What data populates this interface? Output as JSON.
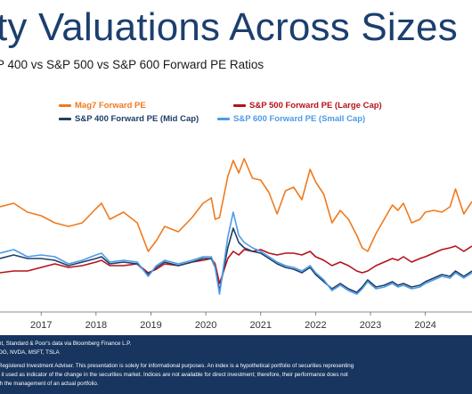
{
  "header": {
    "title": "ity Valuations Across Sizes",
    "subtitle": "P 400 vs S&P 500 vs S&P 600 Forward PE Ratios"
  },
  "legend": [
    {
      "label": "Mag7 Forward PE",
      "color": "#f07a1e"
    },
    {
      "label": "S&P 500 Forward PE (Large Cap)",
      "color": "#b5121b"
    },
    {
      "label": "S&P 400 Forward PE (Mid Cap)",
      "color": "#1f3f66"
    },
    {
      "label": "S&P 600 Forward PE (Small Cap)",
      "color": "#4c9be8"
    }
  ],
  "footer": {
    "line1": "nt, Standard & Poor's data via Bloomberg Finance L.P.",
    "line2": "OG, NVDA, MSFT, TSLA",
    "line3": "Registered Investment Adviser. This presentation is solely for informational purposes. An index is a hypothetical portfolio of securities representing",
    "line4": "f it used as indicator of the change in the securities market. Indices are not available for direct investment; therefore, their performance does not",
    "line5": "th the management of an actual portfolio."
  },
  "chart_data": {
    "type": "line",
    "title": "",
    "xlabel": "",
    "ylabel": "",
    "x_ticks": [
      "2017",
      "2018",
      "2019",
      "2020",
      "2021",
      "2022",
      "2023",
      "2024"
    ],
    "xlim": [
      2016.25,
      2024.85
    ],
    "ylim": [
      0,
      10
    ],
    "y_axis_labels_visible": false,
    "grid": false,
    "legend_position": "top",
    "series": [
      {
        "name": "Mag7 Forward PE",
        "color": "#f07a1e",
        "x": [
          2016.25,
          2016.5,
          2016.75,
          2017.0,
          2017.25,
          2017.5,
          2017.75,
          2018.0,
          2018.1,
          2018.25,
          2018.5,
          2018.75,
          2018.95,
          2019.1,
          2019.25,
          2019.5,
          2019.75,
          2019.95,
          2020.1,
          2020.17,
          2020.25,
          2020.4,
          2020.5,
          2020.6,
          2020.7,
          2020.85,
          2021.0,
          2021.15,
          2021.3,
          2021.45,
          2021.6,
          2021.75,
          2021.9,
          2022.0,
          2022.15,
          2022.3,
          2022.45,
          2022.6,
          2022.75,
          2022.85,
          2022.95,
          2023.1,
          2023.25,
          2023.4,
          2023.5,
          2023.6,
          2023.75,
          2023.9,
          2024.0,
          2024.15,
          2024.3,
          2024.45,
          2024.55,
          2024.7,
          2024.85
        ],
        "y": [
          5.9,
          6.1,
          5.6,
          5.4,
          5.0,
          4.8,
          5.0,
          5.8,
          6.1,
          5.2,
          5.6,
          5.0,
          3.4,
          4.0,
          4.8,
          4.5,
          5.3,
          6.1,
          6.4,
          5.2,
          5.3,
          7.6,
          8.5,
          7.8,
          8.6,
          7.5,
          7.4,
          6.7,
          5.5,
          6.8,
          7.0,
          6.3,
          8.0,
          7.3,
          6.6,
          5.0,
          5.7,
          5.2,
          4.3,
          3.6,
          3.4,
          4.4,
          5.2,
          6.0,
          5.7,
          6.1,
          5.0,
          5.2,
          5.6,
          5.7,
          5.6,
          5.9,
          6.9,
          5.5,
          6.2
        ]
      },
      {
        "name": "S&P 500 Forward PE (Large Cap)",
        "color": "#b5121b",
        "x": [
          2016.25,
          2016.5,
          2016.75,
          2017.0,
          2017.25,
          2017.5,
          2017.75,
          2018.0,
          2018.1,
          2018.25,
          2018.5,
          2018.75,
          2018.95,
          2019.1,
          2019.25,
          2019.5,
          2019.75,
          2019.95,
          2020.1,
          2020.17,
          2020.25,
          2020.4,
          2020.5,
          2020.6,
          2020.7,
          2020.85,
          2021.0,
          2021.15,
          2021.3,
          2021.45,
          2021.6,
          2021.75,
          2021.9,
          2022.0,
          2022.15,
          2022.3,
          2022.45,
          2022.6,
          2022.75,
          2022.85,
          2022.95,
          2023.1,
          2023.25,
          2023.4,
          2023.5,
          2023.6,
          2023.75,
          2023.9,
          2024.0,
          2024.15,
          2024.3,
          2024.45,
          2024.55,
          2024.7,
          2024.85
        ],
        "y": [
          2.2,
          2.3,
          2.3,
          2.5,
          2.7,
          2.5,
          2.6,
          2.8,
          2.9,
          2.6,
          2.6,
          2.7,
          2.2,
          2.4,
          2.7,
          2.6,
          2.8,
          2.9,
          3.0,
          2.7,
          1.6,
          3.0,
          3.4,
          3.2,
          3.5,
          3.4,
          3.5,
          3.3,
          3.2,
          3.3,
          3.3,
          3.2,
          3.4,
          3.1,
          2.9,
          2.6,
          2.8,
          2.6,
          2.3,
          2.2,
          2.3,
          2.6,
          2.8,
          3.0,
          2.9,
          3.1,
          2.8,
          3.0,
          3.1,
          3.3,
          3.5,
          3.6,
          3.7,
          3.4,
          3.7
        ]
      },
      {
        "name": "S&P 400 Forward PE (Mid Cap)",
        "color": "#1f3f66",
        "x": [
          2016.25,
          2016.5,
          2016.75,
          2017.0,
          2017.25,
          2017.5,
          2017.75,
          2018.0,
          2018.1,
          2018.25,
          2018.5,
          2018.75,
          2018.95,
          2019.1,
          2019.25,
          2019.5,
          2019.75,
          2019.95,
          2020.1,
          2020.17,
          2020.25,
          2020.4,
          2020.5,
          2020.6,
          2020.7,
          2020.85,
          2021.0,
          2021.15,
          2021.3,
          2021.45,
          2021.6,
          2021.75,
          2021.9,
          2022.0,
          2022.15,
          2022.3,
          2022.45,
          2022.6,
          2022.75,
          2022.85,
          2022.95,
          2023.1,
          2023.25,
          2023.4,
          2023.5,
          2023.6,
          2023.75,
          2023.9,
          2024.0,
          2024.15,
          2024.3,
          2024.45,
          2024.55,
          2024.7,
          2024.85
        ],
        "y": [
          3.0,
          3.2,
          3.0,
          3.0,
          2.9,
          2.6,
          2.8,
          3.0,
          3.1,
          2.7,
          2.8,
          2.7,
          2.1,
          2.5,
          2.8,
          2.6,
          2.8,
          3.0,
          3.0,
          2.5,
          1.2,
          3.6,
          4.7,
          3.9,
          3.6,
          3.4,
          3.3,
          3.0,
          2.7,
          2.5,
          2.4,
          2.2,
          2.5,
          2.1,
          1.7,
          1.3,
          1.6,
          1.3,
          1.1,
          1.4,
          1.8,
          1.4,
          1.5,
          1.7,
          1.5,
          1.6,
          1.4,
          1.5,
          1.7,
          1.9,
          2.1,
          2.0,
          2.3,
          2.0,
          2.3
        ]
      },
      {
        "name": "S&P 600 Forward PE (Small Cap)",
        "color": "#4c9be8",
        "x": [
          2016.25,
          2016.5,
          2016.75,
          2017.0,
          2017.25,
          2017.5,
          2017.75,
          2018.0,
          2018.1,
          2018.25,
          2018.5,
          2018.75,
          2018.95,
          2019.1,
          2019.25,
          2019.5,
          2019.75,
          2019.95,
          2020.1,
          2020.17,
          2020.25,
          2020.4,
          2020.5,
          2020.6,
          2020.7,
          2020.85,
          2021.0,
          2021.15,
          2021.3,
          2021.45,
          2021.6,
          2021.75,
          2021.9,
          2022.0,
          2022.15,
          2022.3,
          2022.45,
          2022.6,
          2022.75,
          2022.85,
          2022.95,
          2023.1,
          2023.25,
          2023.4,
          2023.5,
          2023.6,
          2023.75,
          2023.9,
          2024.0,
          2024.15,
          2024.3,
          2024.45,
          2024.55,
          2024.7,
          2024.85
        ],
        "y": [
          3.3,
          3.5,
          3.1,
          3.2,
          3.1,
          2.7,
          2.9,
          3.2,
          3.3,
          2.8,
          2.9,
          2.8,
          2.0,
          2.6,
          2.9,
          2.7,
          2.9,
          3.1,
          3.1,
          2.5,
          1.0,
          4.2,
          5.6,
          4.3,
          3.9,
          3.6,
          3.4,
          3.1,
          2.8,
          2.6,
          2.5,
          2.3,
          2.6,
          2.2,
          1.8,
          1.2,
          1.5,
          1.2,
          1.0,
          1.3,
          1.7,
          1.3,
          1.4,
          1.6,
          1.4,
          1.5,
          1.3,
          1.4,
          1.6,
          1.8,
          2.0,
          1.9,
          2.2,
          1.9,
          2.2
        ]
      }
    ]
  }
}
